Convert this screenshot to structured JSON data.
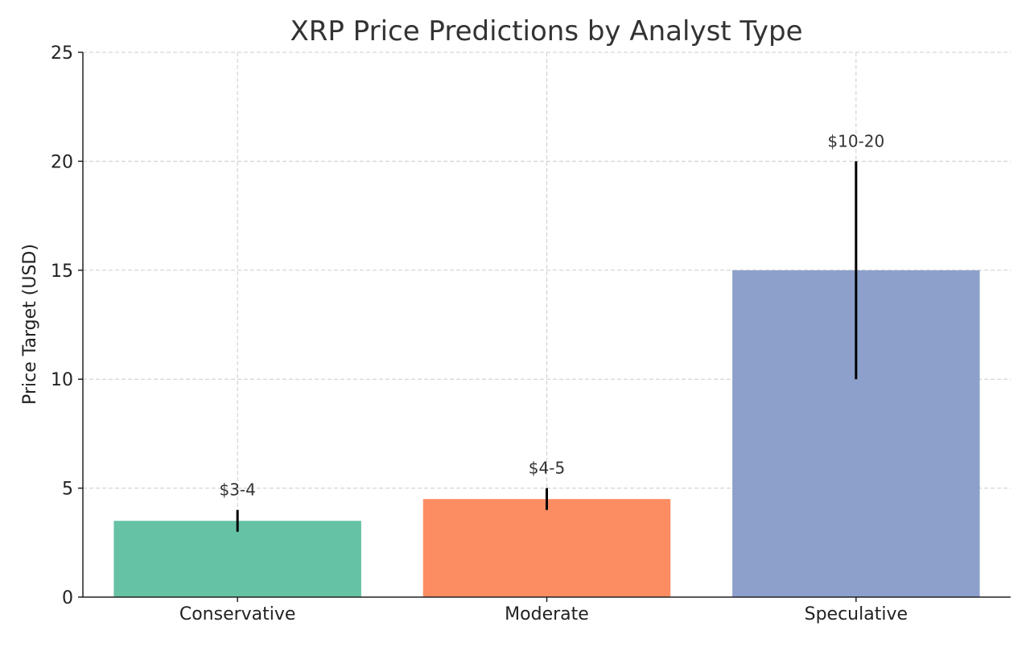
{
  "chart_data": {
    "type": "bar",
    "title": "XRP Price Predictions by Analyst Type",
    "xlabel": "",
    "ylabel": "Price Target (USD)",
    "categories": [
      "Conservative",
      "Moderate",
      "Speculative"
    ],
    "values": [
      3.5,
      4.5,
      15
    ],
    "error_ranges": [
      [
        3,
        4
      ],
      [
        4,
        5
      ],
      [
        10,
        20
      ]
    ],
    "data_labels": [
      "$3-4",
      "$4-5",
      "$10-20"
    ],
    "colors": [
      "#66c2a5",
      "#fc8d62",
      "#8da0cb"
    ],
    "ylim": [
      0,
      25
    ],
    "yticks": [
      0,
      5,
      10,
      15,
      20,
      25
    ],
    "grid": true
  }
}
